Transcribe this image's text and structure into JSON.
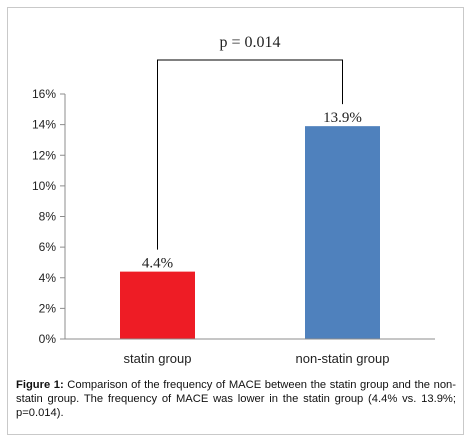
{
  "chart_data": {
    "type": "bar",
    "categories": [
      "statin group",
      "non-statin group"
    ],
    "values": [
      4.4,
      13.9
    ],
    "data_labels": [
      "4.4%",
      "13.9%"
    ],
    "colors": [
      "#ee1c25",
      "#4f81bd"
    ],
    "ylim": [
      0,
      16
    ],
    "yticks": [
      0,
      2,
      4,
      6,
      8,
      10,
      12,
      14,
      16
    ],
    "ytick_labels": [
      "0%",
      "2%",
      "4%",
      "6%",
      "8%",
      "10%",
      "12%",
      "14%",
      "16%"
    ],
    "grid": false,
    "annotation": {
      "text": "p = 0.014"
    }
  },
  "caption": {
    "label": "Figure 1:",
    "text": " Comparison of the frequency of MACE between the statin group and the non-statin group. The frequency of MACE was lower in the statin group (4.4% vs. 13.9%; p=0.014)."
  }
}
